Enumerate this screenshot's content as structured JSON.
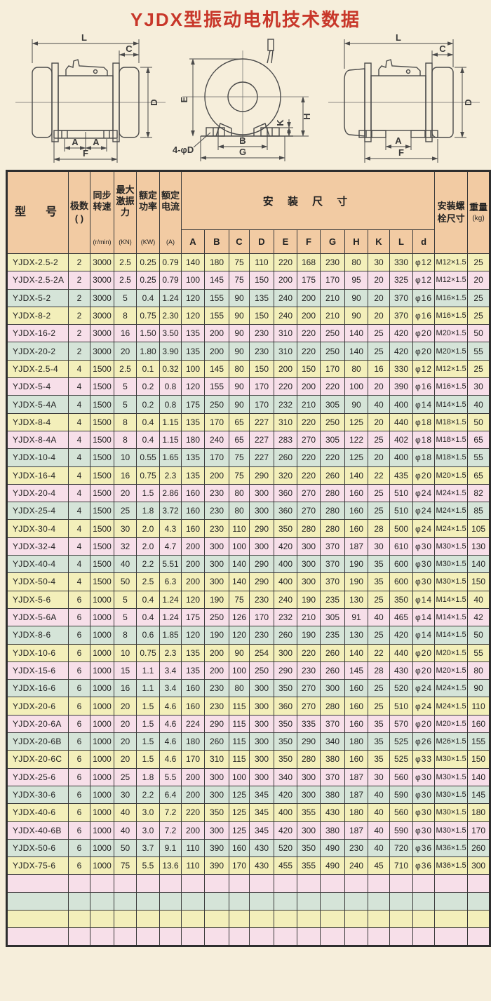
{
  "page": {
    "title": "YJDX型振动电机技术数据"
  },
  "colors": {
    "title_red": "#c8372a",
    "header_bg": "#f2cba3",
    "row_yellow": "#f3efba",
    "row_pink": "#f7dfe9",
    "row_green": "#d5e4d8",
    "page_bg": "#f6eedb",
    "border": "#3a3a3a"
  },
  "diagrams": {
    "left": {
      "labels": [
        "L",
        "C",
        "D",
        "A",
        "A",
        "F"
      ]
    },
    "front": {
      "labels": [
        "E",
        "K",
        "H",
        "B",
        "G",
        "4-φD"
      ]
    },
    "right": {
      "labels": [
        "L",
        "C",
        "D",
        "A",
        "F"
      ]
    }
  },
  "table": {
    "header": {
      "model": "型　号",
      "poles": "极数",
      "poles_paren": "(  )",
      "speed": "同步转速",
      "speed_unit": "(r/min)",
      "force": "最大激振力",
      "force_unit": "(KN)",
      "power": "额定功率",
      "power_unit": "(KW)",
      "current": "额定电流",
      "current_unit": "(A)",
      "mount_dims": "安 装 尺 寸",
      "dim_cols": [
        "A",
        "B",
        "C",
        "D",
        "E",
        "F",
        "G",
        "H",
        "K",
        "L",
        "d"
      ],
      "bolt": "安装螺栓尺寸",
      "weight": "重量",
      "weight_unit": "(kg)"
    },
    "rows": [
      [
        "YJDX-2.5-2",
        "2",
        "3000",
        "2.5",
        "0.25",
        "0.79",
        "140",
        "180",
        "75",
        "110",
        "220",
        "168",
        "230",
        "80",
        "30",
        "330",
        "φ12",
        "M12×1.5",
        "25"
      ],
      [
        "YJDX-2.5-2A",
        "2",
        "3000",
        "2.5",
        "0.25",
        "0.79",
        "100",
        "145",
        "75",
        "150",
        "200",
        "175",
        "170",
        "95",
        "20",
        "325",
        "φ12",
        "M12×1.5",
        "20"
      ],
      [
        "YJDX-5-2",
        "2",
        "3000",
        "5",
        "0.4",
        "1.24",
        "120",
        "155",
        "90",
        "135",
        "240",
        "200",
        "210",
        "90",
        "20",
        "370",
        "φ16",
        "M16×1.5",
        "25"
      ],
      [
        "YJDX-8-2",
        "2",
        "3000",
        "8",
        "0.75",
        "2.30",
        "120",
        "155",
        "90",
        "150",
        "240",
        "200",
        "210",
        "90",
        "20",
        "370",
        "φ16",
        "M16×1.5",
        "25"
      ],
      [
        "YJDX-16-2",
        "2",
        "3000",
        "16",
        "1.50",
        "3.50",
        "135",
        "200",
        "90",
        "230",
        "310",
        "220",
        "250",
        "140",
        "25",
        "420",
        "φ20",
        "M20×1.5",
        "50"
      ],
      [
        "YJDX-20-2",
        "2",
        "3000",
        "20",
        "1.80",
        "3.90",
        "135",
        "200",
        "90",
        "230",
        "310",
        "220",
        "250",
        "140",
        "25",
        "420",
        "φ20",
        "M20×1.5",
        "55"
      ],
      [
        "YJDX-2.5-4",
        "4",
        "1500",
        "2.5",
        "0.1",
        "0.32",
        "100",
        "145",
        "80",
        "150",
        "200",
        "150",
        "170",
        "80",
        "16",
        "330",
        "φ12",
        "M12×1.5",
        "25"
      ],
      [
        "YJDX-5-4",
        "4",
        "1500",
        "5",
        "0.2",
        "0.8",
        "120",
        "155",
        "90",
        "170",
        "220",
        "200",
        "220",
        "100",
        "20",
        "390",
        "φ16",
        "M16×1.5",
        "30"
      ],
      [
        "YJDX-5-4A",
        "4",
        "1500",
        "5",
        "0.2",
        "0.8",
        "175",
        "250",
        "90",
        "170",
        "232",
        "210",
        "305",
        "90",
        "40",
        "400",
        "φ14",
        "M14×1.5",
        "40"
      ],
      [
        "YJDX-8-4",
        "4",
        "1500",
        "8",
        "0.4",
        "1.15",
        "135",
        "170",
        "65",
        "227",
        "310",
        "220",
        "250",
        "125",
        "20",
        "440",
        "φ18",
        "M18×1.5",
        "50"
      ],
      [
        "YJDX-8-4A",
        "4",
        "1500",
        "8",
        "0.4",
        "1.15",
        "180",
        "240",
        "65",
        "227",
        "283",
        "270",
        "305",
        "122",
        "25",
        "402",
        "φ18",
        "M18×1.5",
        "65"
      ],
      [
        "YJDX-10-4",
        "4",
        "1500",
        "10",
        "0.55",
        "1.65",
        "135",
        "170",
        "75",
        "227",
        "260",
        "220",
        "220",
        "125",
        "20",
        "400",
        "φ18",
        "M18×1.5",
        "55"
      ],
      [
        "YJDX-16-4",
        "4",
        "1500",
        "16",
        "0.75",
        "2.3",
        "135",
        "200",
        "75",
        "290",
        "320",
        "220",
        "260",
        "140",
        "22",
        "435",
        "φ20",
        "M20×1.5",
        "65"
      ],
      [
        "YJDX-20-4",
        "4",
        "1500",
        "20",
        "1.5",
        "2.86",
        "160",
        "230",
        "80",
        "300",
        "360",
        "270",
        "280",
        "160",
        "25",
        "510",
        "φ24",
        "M24×1.5",
        "82"
      ],
      [
        "YJDX-25-4",
        "4",
        "1500",
        "25",
        "1.8",
        "3.72",
        "160",
        "230",
        "80",
        "300",
        "360",
        "270",
        "280",
        "160",
        "25",
        "510",
        "φ24",
        "M24×1.5",
        "85"
      ],
      [
        "YJDX-30-4",
        "4",
        "1500",
        "30",
        "2.0",
        "4.3",
        "160",
        "230",
        "110",
        "290",
        "350",
        "280",
        "280",
        "160",
        "28",
        "500",
        "φ24",
        "M24×1.5",
        "105"
      ],
      [
        "YJDX-32-4",
        "4",
        "1500",
        "32",
        "2.0",
        "4.7",
        "200",
        "300",
        "100",
        "300",
        "420",
        "300",
        "370",
        "187",
        "30",
        "610",
        "φ30",
        "M30×1.5",
        "130"
      ],
      [
        "YJDX-40-4",
        "4",
        "1500",
        "40",
        "2.2",
        "5.51",
        "200",
        "300",
        "140",
        "290",
        "400",
        "300",
        "370",
        "190",
        "35",
        "600",
        "φ30",
        "M30×1.5",
        "140"
      ],
      [
        "YJDX-50-4",
        "4",
        "1500",
        "50",
        "2.5",
        "6.3",
        "200",
        "300",
        "140",
        "290",
        "400",
        "300",
        "370",
        "190",
        "35",
        "600",
        "φ30",
        "M30×1.5",
        "150"
      ],
      [
        "YJDX-5-6",
        "6",
        "1000",
        "5",
        "0.4",
        "1.24",
        "120",
        "190",
        "75",
        "230",
        "240",
        "190",
        "235",
        "130",
        "25",
        "350",
        "φ14",
        "M14×1.5",
        "40"
      ],
      [
        "YJDX-5-6A",
        "6",
        "1000",
        "5",
        "0.4",
        "1.24",
        "175",
        "250",
        "126",
        "170",
        "232",
        "210",
        "305",
        "91",
        "40",
        "465",
        "φ14",
        "M14×1.5",
        "42"
      ],
      [
        "YJDX-8-6",
        "6",
        "1000",
        "8",
        "0.6",
        "1.85",
        "120",
        "190",
        "120",
        "230",
        "260",
        "190",
        "235",
        "130",
        "25",
        "420",
        "φ14",
        "M14×1.5",
        "50"
      ],
      [
        "YJDX-10-6",
        "6",
        "1000",
        "10",
        "0.75",
        "2.3",
        "135",
        "200",
        "90",
        "254",
        "300",
        "220",
        "260",
        "140",
        "22",
        "440",
        "φ20",
        "M20×1.5",
        "55"
      ],
      [
        "YJDX-15-6",
        "6",
        "1000",
        "15",
        "1.1",
        "3.4",
        "135",
        "200",
        "100",
        "250",
        "290",
        "230",
        "260",
        "145",
        "28",
        "430",
        "φ20",
        "M20×1.5",
        "80"
      ],
      [
        "YJDX-16-6",
        "6",
        "1000",
        "16",
        "1.1",
        "3.4",
        "160",
        "230",
        "80",
        "300",
        "350",
        "270",
        "300",
        "160",
        "25",
        "520",
        "φ24",
        "M24×1.5",
        "90"
      ],
      [
        "YJDX-20-6",
        "6",
        "1000",
        "20",
        "1.5",
        "4.6",
        "160",
        "230",
        "115",
        "300",
        "360",
        "270",
        "280",
        "160",
        "25",
        "510",
        "φ24",
        "M24×1.5",
        "110"
      ],
      [
        "YJDX-20-6A",
        "6",
        "1000",
        "20",
        "1.5",
        "4.6",
        "224",
        "290",
        "115",
        "300",
        "350",
        "335",
        "370",
        "160",
        "35",
        "570",
        "φ20",
        "M20×1.5",
        "160"
      ],
      [
        "YJDX-20-6B",
        "6",
        "1000",
        "20",
        "1.5",
        "4.6",
        "180",
        "260",
        "115",
        "300",
        "350",
        "290",
        "340",
        "180",
        "35",
        "525",
        "φ26",
        "M26×1.5",
        "155"
      ],
      [
        "YJDX-20-6C",
        "6",
        "1000",
        "20",
        "1.5",
        "4.6",
        "170",
        "310",
        "115",
        "300",
        "350",
        "280",
        "380",
        "160",
        "35",
        "525",
        "φ33",
        "M30×1.5",
        "150"
      ],
      [
        "YJDX-25-6",
        "6",
        "1000",
        "25",
        "1.8",
        "5.5",
        "200",
        "300",
        "100",
        "300",
        "340",
        "300",
        "370",
        "187",
        "30",
        "560",
        "φ30",
        "M30×1.5",
        "140"
      ],
      [
        "YJDX-30-6",
        "6",
        "1000",
        "30",
        "2.2",
        "6.4",
        "200",
        "300",
        "125",
        "345",
        "420",
        "300",
        "380",
        "187",
        "40",
        "590",
        "φ30",
        "M30×1.5",
        "145"
      ],
      [
        "YJDX-40-6",
        "6",
        "1000",
        "40",
        "3.0",
        "7.2",
        "220",
        "350",
        "125",
        "345",
        "400",
        "355",
        "430",
        "180",
        "40",
        "560",
        "φ30",
        "M30×1.5",
        "180"
      ],
      [
        "YJDX-40-6B",
        "6",
        "1000",
        "40",
        "3.0",
        "7.2",
        "200",
        "300",
        "125",
        "345",
        "420",
        "300",
        "380",
        "187",
        "40",
        "590",
        "φ30",
        "M30×1.5",
        "170"
      ],
      [
        "YJDX-50-6",
        "6",
        "1000",
        "50",
        "3.7",
        "9.1",
        "110",
        "390",
        "160",
        "430",
        "520",
        "350",
        "490",
        "230",
        "40",
        "720",
        "φ36",
        "M36×1.5",
        "260"
      ],
      [
        "YJDX-75-6",
        "6",
        "1000",
        "75",
        "5.5",
        "13.6",
        "110",
        "390",
        "170",
        "430",
        "455",
        "355",
        "490",
        "240",
        "45",
        "710",
        "φ36",
        "M36×1.5",
        "300"
      ]
    ],
    "empty_rows": 4
  }
}
